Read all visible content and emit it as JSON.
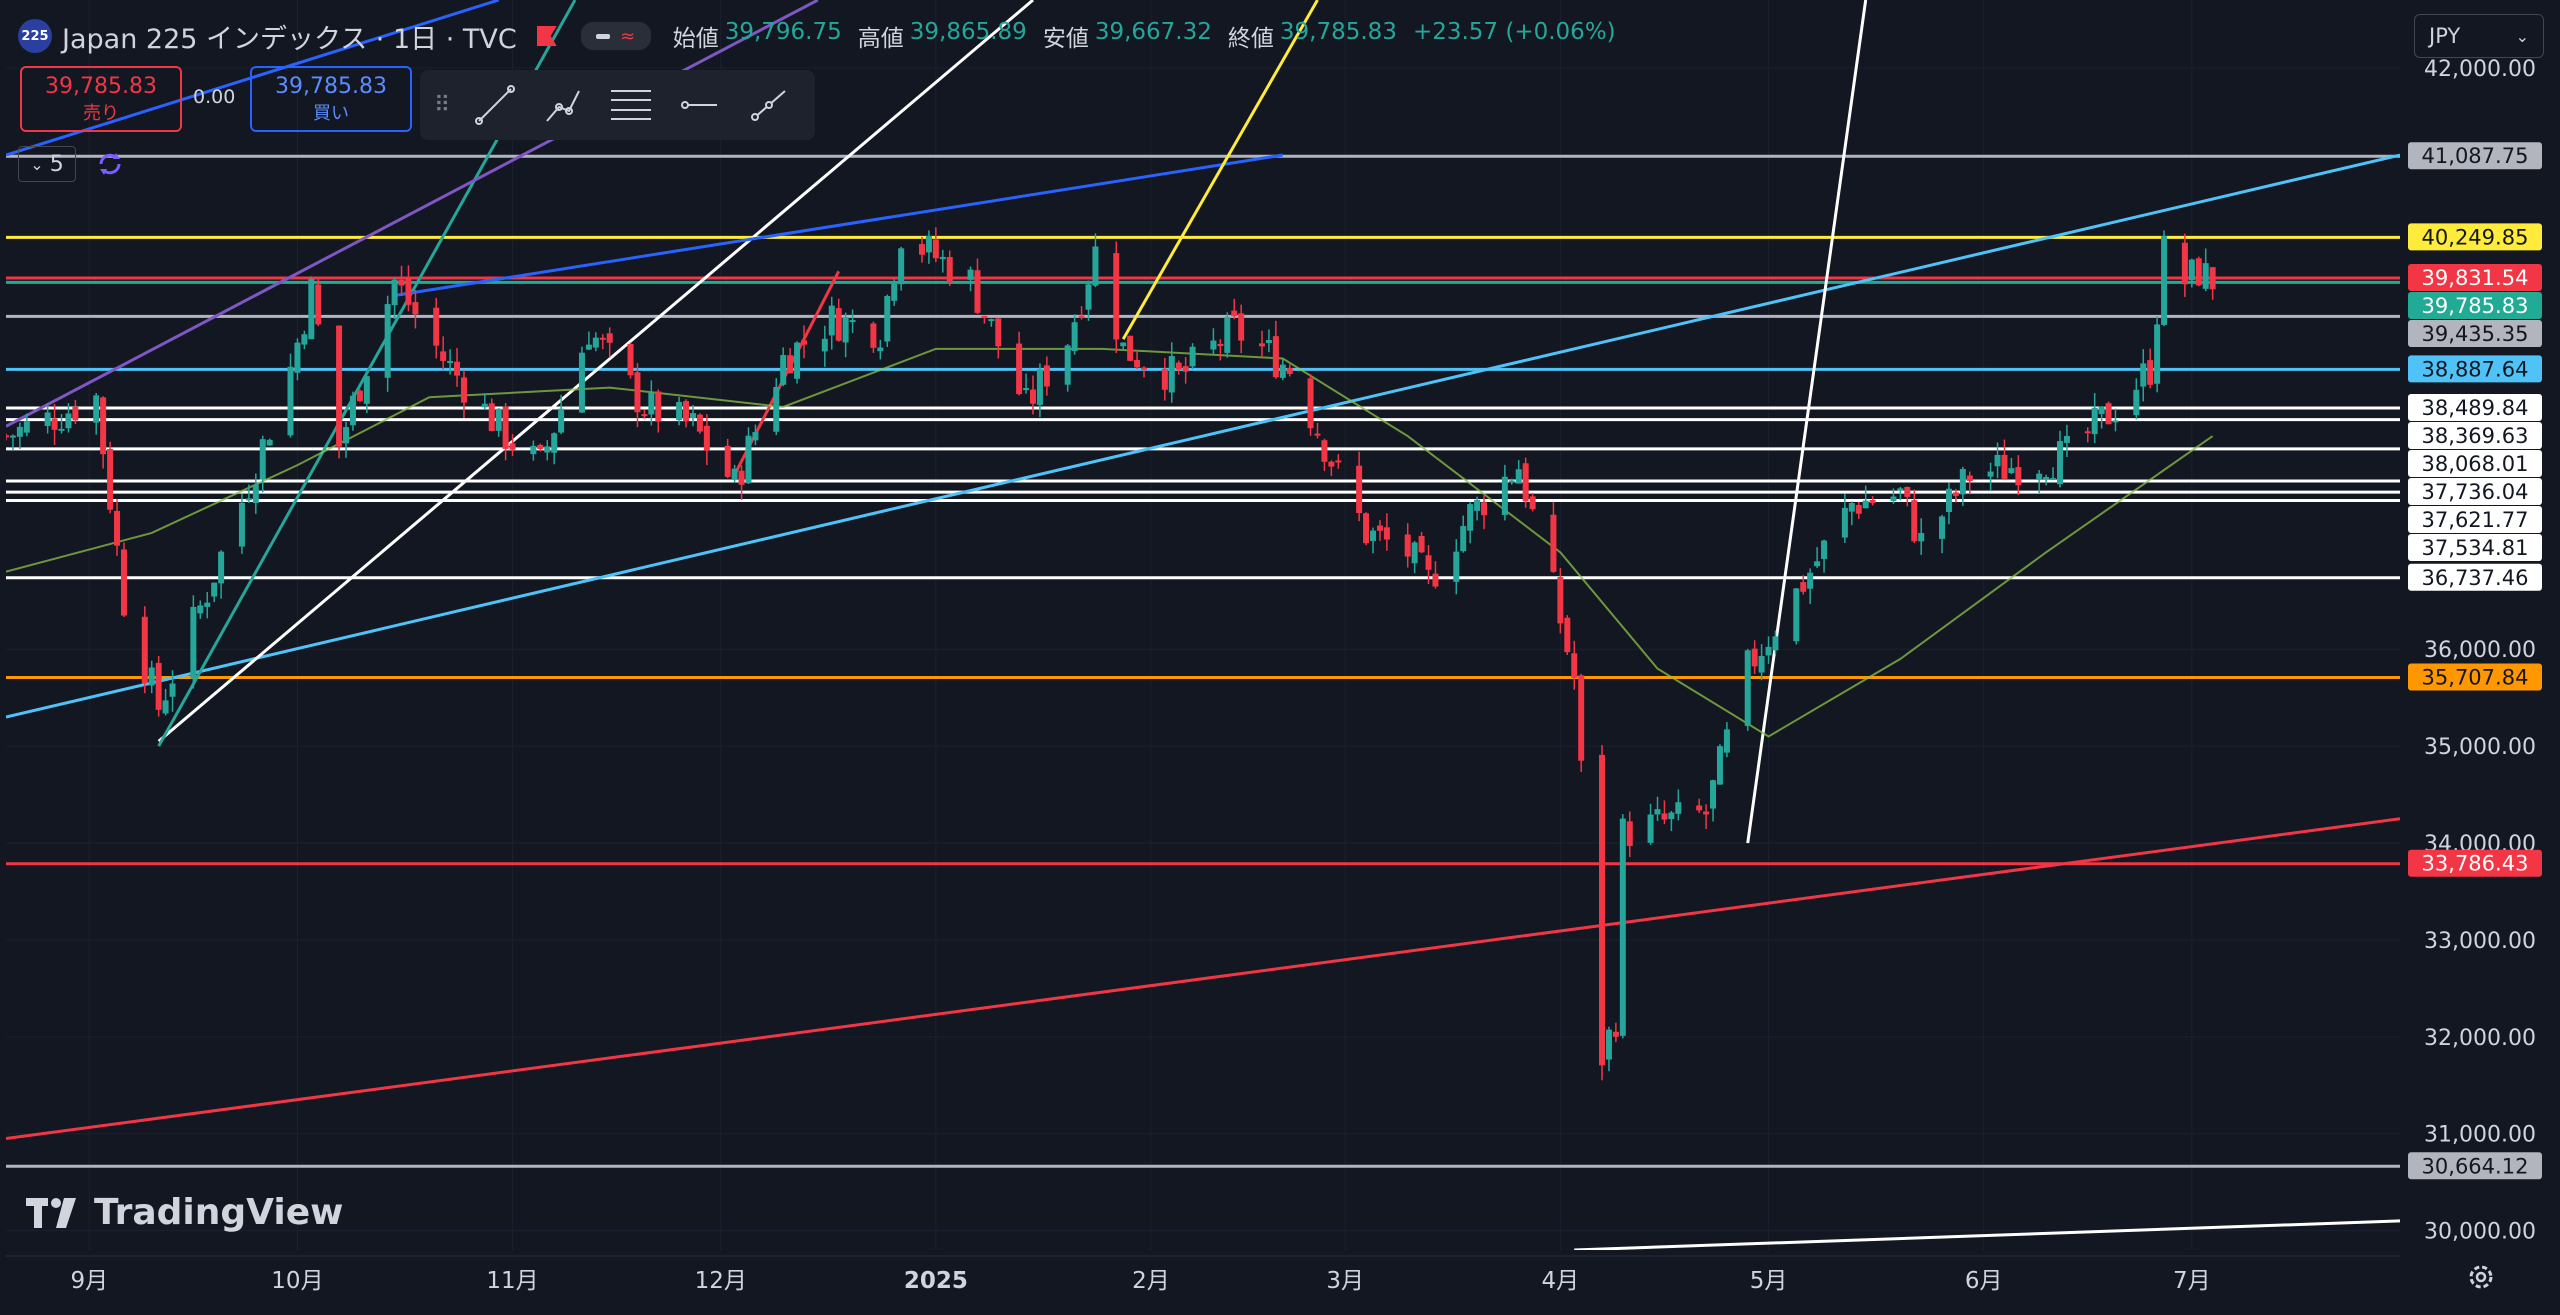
{
  "header": {
    "symbol_badge": "225",
    "title": "Japan 225 インデックス · 1日 · TVC",
    "ohlc": [
      {
        "label": "始値",
        "value": "39,796.75"
      },
      {
        "label": "高値",
        "value": "39,865.89"
      },
      {
        "label": "安値",
        "value": "39,667.32"
      },
      {
        "label": "終値",
        "value": "39,785.83"
      },
      {
        "label": "",
        "value": "+23.57 (+0.06%)"
      }
    ]
  },
  "trade": {
    "sell_price": "39,785.83",
    "sell_label": "売り",
    "spread": "0.00",
    "buy_price": "39,785.83",
    "buy_label": "買い"
  },
  "indicators": {
    "count": "5"
  },
  "currency": "JPY",
  "branding": {
    "logo_text": "TradingView"
  },
  "colors": {
    "background": "#131722",
    "up": "#26a69a",
    "down": "#f23645",
    "grid": "#1e2230"
  },
  "chart_data": {
    "type": "candlestick",
    "y_axis": {
      "min": 29800,
      "max": 42700,
      "ticks": [
        30000,
        31000,
        32000,
        33000,
        34000,
        35000,
        36000,
        42000
      ]
    },
    "x_axis": {
      "start": "2024-08-20",
      "end": "2025-07-31",
      "labels": [
        {
          "text": "9月",
          "date": "2024-09-01"
        },
        {
          "text": "10月",
          "date": "2024-10-01"
        },
        {
          "text": "11月",
          "date": "2024-11-01"
        },
        {
          "text": "12月",
          "date": "2024-12-01"
        },
        {
          "text": "2025",
          "date": "2025-01-01",
          "bold": true
        },
        {
          "text": "2月",
          "date": "2025-02-01"
        },
        {
          "text": "3月",
          "date": "2025-03-01"
        },
        {
          "text": "4月",
          "date": "2025-04-01"
        },
        {
          "text": "5月",
          "date": "2025-05-01"
        },
        {
          "text": "6月",
          "date": "2025-06-01"
        },
        {
          "text": "7月",
          "date": "2025-07-01"
        }
      ]
    },
    "price_path": [
      [
        "2024-08-20",
        38200
      ],
      [
        "2024-08-27",
        38400
      ],
      [
        "2024-09-02",
        38600
      ],
      [
        "2024-09-06",
        36500
      ],
      [
        "2024-09-11",
        35400
      ],
      [
        "2024-09-18",
        36600
      ],
      [
        "2024-09-25",
        37900
      ],
      [
        "2024-09-30",
        38900
      ],
      [
        "2024-10-03",
        39700
      ],
      [
        "2024-10-07",
        38100
      ],
      [
        "2024-10-15",
        39800
      ],
      [
        "2024-10-22",
        39000
      ],
      [
        "2024-10-31",
        38200
      ],
      [
        "2024-11-05",
        37900
      ],
      [
        "2024-11-12",
        39300
      ],
      [
        "2024-11-20",
        38500
      ],
      [
        "2024-11-27",
        38300
      ],
      [
        "2024-12-03",
        37700
      ],
      [
        "2024-12-10",
        39000
      ],
      [
        "2024-12-17",
        39400
      ],
      [
        "2024-12-24",
        39300
      ],
      [
        "2024-12-27",
        40300
      ],
      [
        "2025-01-06",
        39800
      ],
      [
        "2025-01-14",
        38500
      ],
      [
        "2025-01-20",
        39200
      ],
      [
        "2025-01-24",
        40100
      ],
      [
        "2025-01-28",
        39100
      ],
      [
        "2025-02-05",
        38800
      ],
      [
        "2025-02-13",
        39300
      ],
      [
        "2025-02-21",
        38900
      ],
      [
        "2025-02-28",
        37800
      ],
      [
        "2025-03-04",
        37200
      ],
      [
        "2025-03-10",
        37000
      ],
      [
        "2025-03-13",
        36700
      ],
      [
        "2025-03-19",
        37400
      ],
      [
        "2025-03-26",
        37900
      ],
      [
        "2025-03-31",
        36600
      ],
      [
        "2025-04-03",
        35700
      ],
      [
        "2025-04-07",
        31800
      ],
      [
        "2025-04-09",
        32200
      ],
      [
        "2025-04-10",
        34100
      ],
      [
        "2025-04-15",
        34200
      ],
      [
        "2025-04-22",
        34300
      ],
      [
        "2025-04-28",
        35800
      ],
      [
        "2025-05-07",
        36800
      ],
      [
        "2025-05-13",
        37500
      ],
      [
        "2025-05-20",
        37600
      ],
      [
        "2025-05-23",
        37100
      ],
      [
        "2025-05-30",
        37800
      ],
      [
        "2025-06-06",
        37900
      ],
      [
        "2025-06-13",
        38000
      ],
      [
        "2025-06-20",
        38500
      ],
      [
        "2025-06-25",
        38900
      ],
      [
        "2025-06-27",
        40100
      ],
      [
        "2025-06-30",
        39800
      ],
      [
        "2025-07-02",
        39900
      ],
      [
        "2025-07-04",
        39800
      ]
    ],
    "ma_path": [
      [
        "2024-08-20",
        36800
      ],
      [
        "2024-09-10",
        37200
      ],
      [
        "2024-10-01",
        37900
      ],
      [
        "2024-10-20",
        38600
      ],
      [
        "2024-11-15",
        38700
      ],
      [
        "2024-12-10",
        38500
      ],
      [
        "2025-01-01",
        39100
      ],
      [
        "2025-01-25",
        39100
      ],
      [
        "2025-02-20",
        39000
      ],
      [
        "2025-03-10",
        38200
      ],
      [
        "2025-04-01",
        37000
      ],
      [
        "2025-04-15",
        35800
      ],
      [
        "2025-05-01",
        35100
      ],
      [
        "2025-05-20",
        35900
      ],
      [
        "2025-06-10",
        37000
      ],
      [
        "2025-06-30",
        38000
      ],
      [
        "2025-07-04",
        38200
      ]
    ],
    "horizontal_levels": [
      {
        "value": 41087.75,
        "label": "41,087.75",
        "color": "#b2b5be",
        "text_color": "#131722"
      },
      {
        "value": 40249.85,
        "label": "40,249.85",
        "color": "#ffeb3b",
        "text_color": "#131722"
      },
      {
        "value": 39831.54,
        "label": "39,831.54",
        "color": "#f23645",
        "text_color": "#ffffff"
      },
      {
        "value": 39785.83,
        "label": "39,785.83",
        "color": "#22ab94",
        "text_color": "#ffffff"
      },
      {
        "value": 39435.35,
        "label": "39,435.35",
        "color": "#b2b5be",
        "text_color": "#131722"
      },
      {
        "value": 38887.64,
        "label": "38,887.64",
        "color": "#4fc3f7",
        "text_color": "#131722"
      },
      {
        "value": 38489.84,
        "label": "38,489.84",
        "color": "#ffffff",
        "text_color": "#131722"
      },
      {
        "value": 38369.63,
        "label": "38,369.63",
        "color": "#ffffff",
        "text_color": "#131722"
      },
      {
        "value": 38068.01,
        "label": "38,068.01",
        "color": "#ffffff",
        "text_color": "#131722"
      },
      {
        "value": 37736.04,
        "label": "37,736.04",
        "color": "#ffffff",
        "text_color": "#131722"
      },
      {
        "value": 37621.77,
        "label": "37,621.77",
        "color": "#ffffff",
        "text_color": "#131722"
      },
      {
        "value": 37534.81,
        "label": "37,534.81",
        "color": "#ffffff",
        "text_color": "#131722"
      },
      {
        "value": 36737.46,
        "label": "36,737.46",
        "color": "#ffffff",
        "text_color": "#131722"
      },
      {
        "value": 35707.84,
        "label": "35,707.84",
        "color": "#ff9800",
        "text_color": "#131722"
      },
      {
        "value": 33786.43,
        "label": "33,786.43",
        "color": "#f23645",
        "text_color": "#ffffff"
      },
      {
        "value": 30664.12,
        "label": "30,664.12",
        "color": "#b2b5be",
        "text_color": "#131722"
      }
    ],
    "trendlines": [
      {
        "color": "#4fc3f7",
        "from": [
          "2024-08-20",
          35300
        ],
        "to": [
          "2025-07-31",
          41100
        ]
      },
      {
        "color": "#f23645",
        "from": [
          "2024-08-20",
          30950
        ],
        "to": [
          "2025-07-31",
          34250
        ]
      },
      {
        "color": "#ffffff",
        "from": [
          "2025-04-03",
          29800
        ],
        "to": [
          "2025-07-31",
          30100
        ]
      },
      {
        "color": "#ffffff",
        "from": [
          "2024-09-11",
          35050
        ],
        "to": [
          "2025-01-15",
          42700
        ]
      },
      {
        "color": "#26a69a",
        "from": [
          "2024-09-11",
          35000
        ],
        "to": [
          "2024-11-10",
          42700
        ]
      },
      {
        "color": "#7e57c2",
        "from": [
          "2024-08-20",
          38300
        ],
        "to": [
          "2024-12-15",
          42700
        ]
      },
      {
        "color": "#2962ff",
        "from": [
          "2024-08-20",
          41100
        ],
        "to": [
          "2024-10-30",
          42700
        ]
      },
      {
        "color": "#2962ff",
        "from": [
          "2024-10-15",
          39650
        ],
        "to": [
          "2025-02-20",
          41100
        ]
      },
      {
        "color": "#ffeb3b",
        "from": [
          "2025-01-28",
          39200
        ],
        "to": [
          "2025-02-25",
          42700
        ]
      },
      {
        "color": "#ffffff",
        "from": [
          "2025-04-28",
          34000
        ],
        "to": [
          "2025-05-15",
          42700
        ]
      },
      {
        "color": "#f23645",
        "from": [
          "2024-12-03",
          37800
        ],
        "to": [
          "2024-12-18",
          39900
        ]
      }
    ]
  }
}
